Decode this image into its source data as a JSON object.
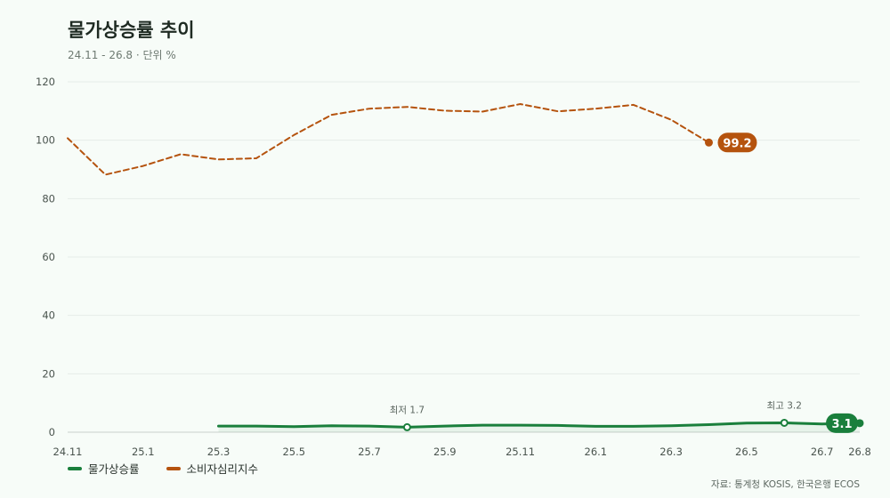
{
  "header": {
    "title": "물가상승률 추이",
    "subtitle": "24.11 - 26.8 · 단위 %"
  },
  "source": "자료: 통계청 KOSIS, 한국은행 ECOS",
  "colors": {
    "inflation": "#1a7f3c",
    "sentiment": "#b5530e",
    "grid": "#e6ece8",
    "axis": "#c9d1cc"
  },
  "chart_data": {
    "type": "line",
    "title": "물가상승률 추이",
    "subtitle": "24.11 - 26.8 · 단위 %",
    "ylim": [
      0,
      120
    ],
    "yticks": [
      0,
      20,
      40,
      60,
      80,
      100,
      120
    ],
    "x": [
      "24.11",
      "24.12",
      "25.1",
      "25.2",
      "25.3",
      "25.4",
      "25.5",
      "25.6",
      "25.7",
      "25.8",
      "25.9",
      "25.10",
      "25.11",
      "25.12",
      "26.1",
      "26.2",
      "26.3",
      "26.4",
      "26.5",
      "26.6",
      "26.7",
      "26.8"
    ],
    "xtick_labels": [
      "24.11",
      "25.1",
      "25.3",
      "25.5",
      "25.7",
      "25.9",
      "25.11",
      "26.1",
      "26.3",
      "26.5",
      "26.7",
      "26.8"
    ],
    "grid": true,
    "legend_position": "bottom-left",
    "series": [
      {
        "name": "물가상승률",
        "style": "solid",
        "values": [
          null,
          null,
          null,
          null,
          2.1,
          2.1,
          1.9,
          2.2,
          2.1,
          1.7,
          2.1,
          2.4,
          2.4,
          2.3,
          2.0,
          2.0,
          2.2,
          2.6,
          3.1,
          3.2,
          2.8,
          3.1
        ],
        "annotations": [
          {
            "x": "25.8",
            "label": "최저 1.7"
          },
          {
            "x": "26.6",
            "label": "최고 3.2"
          }
        ],
        "end_label": "3.1"
      },
      {
        "name": "소비자심리지수",
        "style": "dashed",
        "values": [
          100.7,
          88.2,
          91.2,
          95.2,
          93.4,
          93.8,
          101.8,
          108.7,
          110.8,
          111.4,
          110.1,
          109.8,
          112.4,
          109.9,
          110.8,
          112.1,
          107.0,
          99.2,
          null,
          null,
          null,
          null
        ],
        "end_label": "99.2"
      }
    ]
  }
}
